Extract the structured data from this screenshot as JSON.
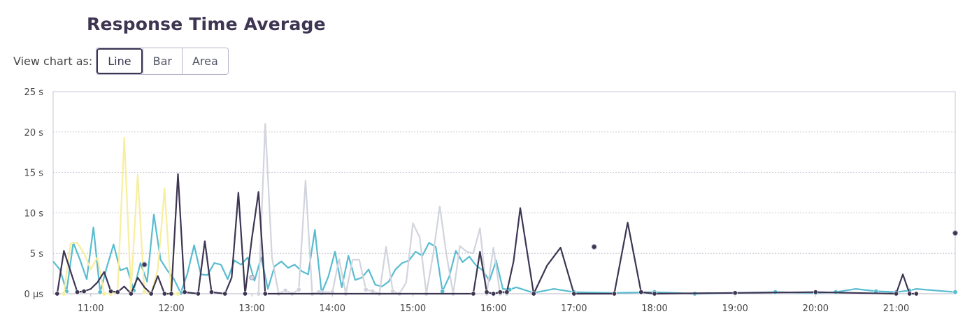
{
  "header": {
    "title": "Response Time Average"
  },
  "view_toggle": {
    "label": "View chart as:",
    "options": [
      {
        "label": "Line",
        "active": true
      },
      {
        "label": "Bar",
        "active": false
      },
      {
        "label": "Area",
        "active": false
      }
    ]
  },
  "chart_data": {
    "type": "line",
    "title": "Response Time Average",
    "xlabel": "",
    "ylabel": "",
    "y_unit": "s",
    "ylim": [
      0,
      25
    ],
    "y_ticks": [
      0,
      5,
      10,
      15,
      20,
      25
    ],
    "y_tick_labels": [
      "0 µs",
      "5 s",
      "10 s",
      "15 s",
      "20 s",
      "25 s"
    ],
    "xlim": [
      "10:32",
      "21:44"
    ],
    "x_tick_labels": [
      "11:00",
      "12:00",
      "13:00",
      "14:00",
      "15:00",
      "16:00",
      "17:00",
      "18:00",
      "19:00",
      "20:00",
      "21:00"
    ],
    "grid": true,
    "legend": "none",
    "series": [
      {
        "color": "#58bcd0",
        "x": [
          "10:32",
          "10:37",
          "10:42",
          "10:47",
          "10:52",
          "10:57",
          "11:02",
          "11:07",
          "11:12",
          "11:17",
          "11:22",
          "11:27",
          "11:32",
          "11:37",
          "11:42",
          "11:47",
          "11:52",
          "11:57",
          "12:02",
          "12:07",
          "12:12",
          "12:17",
          "12:22",
          "12:27",
          "12:32",
          "12:37",
          "12:42",
          "12:47",
          "12:52",
          "12:57",
          "13:02",
          "13:07",
          "13:12",
          "13:17",
          "13:22",
          "13:27",
          "13:32",
          "13:37",
          "13:42",
          "13:47",
          "13:52",
          "13:57",
          "14:02",
          "14:07",
          "14:12",
          "14:17",
          "14:22",
          "14:27",
          "14:32",
          "14:37",
          "14:42",
          "14:47",
          "14:52",
          "14:57",
          "15:02",
          "15:07",
          "15:12",
          "15:17",
          "15:22",
          "15:27",
          "15:32",
          "15:37",
          "15:42",
          "15:47",
          "15:52",
          "15:57",
          "16:02",
          "16:07",
          "16:12",
          "16:17",
          "16:30",
          "16:45",
          "17:00",
          "17:30",
          "18:00",
          "18:30",
          "19:00",
          "19:30",
          "20:00",
          "20:15",
          "20:30",
          "20:45",
          "21:00",
          "21:10",
          "21:15",
          "21:44"
        ],
        "values": [
          4.0,
          3.0,
          0.3,
          6.3,
          4.2,
          1.8,
          8.2,
          0.2,
          3.3,
          6.1,
          2.9,
          3.2,
          0.4,
          3.8,
          1.5,
          9.8,
          4.2,
          2.9,
          1.8,
          0.1,
          2.5,
          6.0,
          2.4,
          2.3,
          3.8,
          3.6,
          1.8,
          4.1,
          3.6,
          4.5,
          1.6,
          4.5,
          0.6,
          3.4,
          4.0,
          3.2,
          3.6,
          2.8,
          2.4,
          7.9,
          0.1,
          2.1,
          5.2,
          0.8,
          4.7,
          1.7,
          2.0,
          3.0,
          1.1,
          0.9,
          1.5,
          3.0,
          3.8,
          4.1,
          5.2,
          4.7,
          6.3,
          5.8,
          0.3,
          2.1,
          5.3,
          3.9,
          4.6,
          3.5,
          2.9,
          1.6,
          4.1,
          0.6,
          0.5,
          0.8,
          0.1,
          0.6,
          0.2,
          0.1,
          0.2,
          0.0,
          0.1,
          0.2,
          0.1,
          0.2,
          0.6,
          0.3,
          0.2,
          0.4,
          0.6,
          0.2
        ]
      },
      {
        "color": "#f7ee9e",
        "x": [
          "10:40",
          "10:45",
          "10:50",
          "10:55",
          "11:00",
          "11:05",
          "11:10",
          "11:15",
          "11:20",
          "11:25",
          "11:30",
          "11:35",
          "11:40",
          "11:45",
          "11:50",
          "11:55",
          "12:00",
          "12:05"
        ],
        "values": [
          0.0,
          6.2,
          6.3,
          5.0,
          3.0,
          4.5,
          0.0,
          0.0,
          0.2,
          19.3,
          0.3,
          14.7,
          0.2,
          0.0,
          3.0,
          13.0,
          0.0,
          0.0
        ]
      },
      {
        "color": "#d2d4de",
        "x": [
          "13:05",
          "13:10",
          "13:15",
          "13:20",
          "13:25",
          "13:30",
          "13:35",
          "13:40",
          "13:45",
          "13:50",
          "14:00",
          "14:05",
          "14:10",
          "14:15",
          "14:20",
          "14:25",
          "14:30",
          "14:35",
          "14:40",
          "14:45",
          "14:50",
          "14:55",
          "15:00",
          "15:05",
          "15:10",
          "15:15",
          "15:20",
          "15:25",
          "15:30",
          "15:35",
          "15:40",
          "15:45",
          "15:50",
          "15:55",
          "16:00",
          "16:05",
          "16:10"
        ],
        "values": [
          0.0,
          21.0,
          4.5,
          0.0,
          0.4,
          0.0,
          0.5,
          14.0,
          0.0,
          0.2,
          0.2,
          4.3,
          0.0,
          4.2,
          4.2,
          0.5,
          0.3,
          0.0,
          5.8,
          0.3,
          0.0,
          1.4,
          8.7,
          7.0,
          0.0,
          4.8,
          10.8,
          4.8,
          0.0,
          5.9,
          5.2,
          5.0,
          8.1,
          0.0,
          5.7,
          0.0,
          0.0
        ]
      },
      {
        "color": "#3d3552",
        "x": [
          "10:35",
          "10:40",
          "10:50",
          "10:55",
          "11:00",
          "11:05",
          "11:10",
          "11:15",
          "11:20",
          "11:25",
          "11:30",
          "11:35",
          "11:40",
          "11:45",
          "11:50",
          "11:55",
          "12:00",
          "12:05",
          "12:10",
          "12:20",
          "12:25",
          "12:30",
          "12:40",
          "12:45",
          "12:50",
          "12:55",
          "13:00",
          "13:05",
          "13:10",
          "15:45",
          "15:50",
          "15:55",
          "16:00",
          "16:05",
          "16:10",
          "16:15",
          "16:20",
          "16:30",
          "16:40",
          "16:50",
          "17:00",
          "17:30",
          "17:40",
          "17:50",
          "18:00",
          "19:00",
          "20:00",
          "21:00",
          "21:05",
          "21:10",
          "21:15"
        ],
        "values": [
          0.0,
          5.3,
          0.2,
          0.3,
          0.6,
          1.4,
          2.7,
          0.3,
          0.2,
          0.9,
          0.0,
          2.0,
          0.8,
          0.0,
          2.2,
          0.0,
          0.0,
          14.8,
          0.2,
          0.0,
          6.5,
          0.2,
          0.0,
          2.0,
          12.5,
          0.0,
          6.8,
          12.6,
          0.0,
          0.0,
          5.2,
          0.2,
          0.0,
          0.2,
          0.2,
          4.0,
          10.6,
          0.0,
          3.5,
          5.7,
          0.0,
          0.0,
          8.8,
          0.2,
          0.0,
          0.1,
          0.2,
          0.0,
          2.4,
          0.0,
          0.0
        ]
      }
    ],
    "points": [
      {
        "x": "17:15",
        "value": 5.8,
        "color": "#3d3552"
      },
      {
        "x": "21:44",
        "value": 7.5,
        "color": "#3d3552"
      },
      {
        "x": "11:40",
        "value": 3.6,
        "color": "#3d3552"
      },
      {
        "x": "13:00",
        "value": 2.0,
        "color": "#d2d4de"
      }
    ]
  }
}
